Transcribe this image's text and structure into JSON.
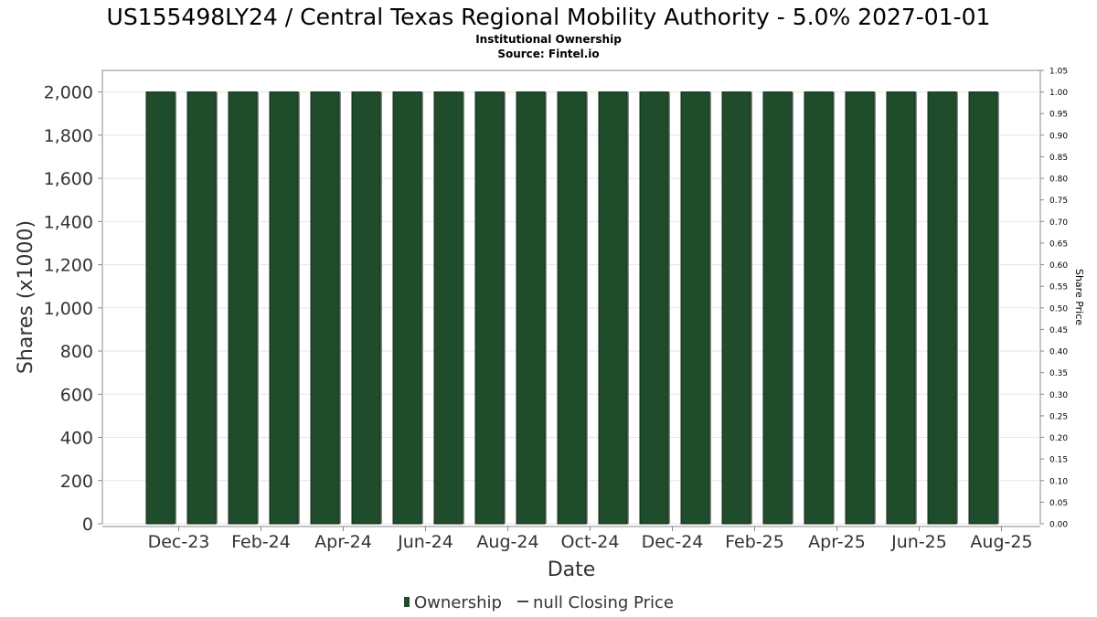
{
  "chart_data": {
    "type": "bar",
    "title": "US155498LY24 / Central Texas Regional Mobility Authority - 5.0% 2027-01-01",
    "subtitle_lines": [
      "Institutional Ownership",
      "Source: Fintel.io"
    ],
    "xlabel": "Date",
    "ylabel": "Shares (x1000)",
    "y2label": "Share Price",
    "ylim": [
      0,
      2100
    ],
    "y_ticks": [
      "0",
      "200",
      "400",
      "600",
      "800",
      "1,000",
      "1,200",
      "1,400",
      "1,600",
      "1,800",
      "2,000"
    ],
    "y2lim": [
      0,
      1.05
    ],
    "y2_ticks": [
      "0.00",
      "0.05",
      "0.10",
      "0.15",
      "0.20",
      "0.25",
      "0.30",
      "0.35",
      "0.40",
      "0.45",
      "0.50",
      "0.55",
      "0.60",
      "0.65",
      "0.70",
      "0.75",
      "0.80",
      "0.85",
      "0.90",
      "0.95",
      "1.00",
      "1.05"
    ],
    "x_tick_labels": [
      "Dec-23",
      "Feb-24",
      "Apr-24",
      "Jun-24",
      "Aug-24",
      "Oct-24",
      "Dec-24",
      "Feb-25",
      "Apr-25",
      "Jun-25",
      "Aug-25"
    ],
    "series": [
      {
        "name": "Ownership",
        "color": "#1f4d2b",
        "values": [
          2000,
          2000,
          2000,
          2000,
          2000,
          2000,
          2000,
          2000,
          2000,
          2000,
          2000,
          2000,
          2000,
          2000,
          2000,
          2000,
          2000,
          2000,
          2000,
          2000,
          2000
        ]
      },
      {
        "name": "null Closing Price",
        "color": "#444444",
        "values": []
      }
    ],
    "grid": true,
    "legend_position": "bottom"
  }
}
